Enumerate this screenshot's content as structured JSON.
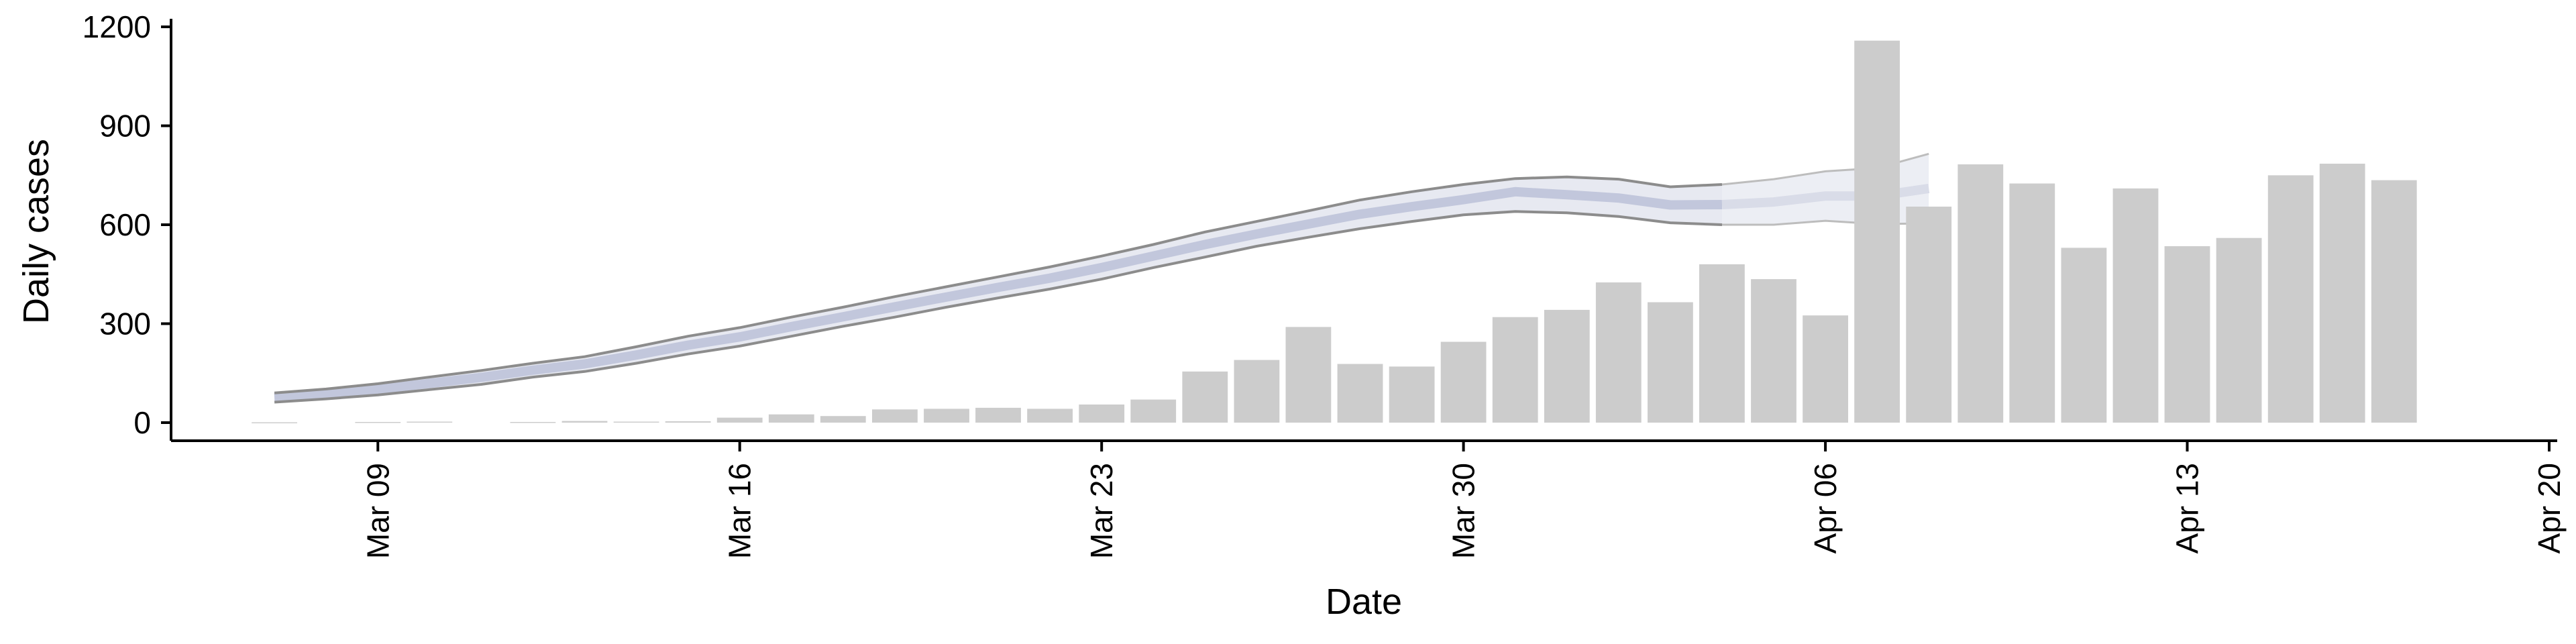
{
  "chart_data": {
    "type": "bar",
    "title": "",
    "xlabel": "Date",
    "ylabel": "Daily cases",
    "ylim": [
      0,
      1200
    ],
    "yticks": [
      0,
      300,
      600,
      900,
      1200
    ],
    "xlim": [
      "2020-03-05",
      "2020-04-20"
    ],
    "xticks": [
      {
        "date": "2020-03-09",
        "label": "Mar 09"
      },
      {
        "date": "2020-03-16",
        "label": "Mar 16"
      },
      {
        "date": "2020-03-23",
        "label": "Mar 23"
      },
      {
        "date": "2020-03-30",
        "label": "Mar 30"
      },
      {
        "date": "2020-04-06",
        "label": "Apr 06"
      },
      {
        "date": "2020-04-13",
        "label": "Apr 13"
      },
      {
        "date": "2020-04-20",
        "label": "Apr 20"
      }
    ],
    "grid": false,
    "colors": {
      "bars": "#cccccc",
      "band_outline": "#8c8c8c",
      "band_fill": "#d3d7e6",
      "band_projection": "#e6e8f0",
      "axis": "#000000"
    },
    "bars": [
      {
        "date": "2020-03-07",
        "value": 1
      },
      {
        "date": "2020-03-09",
        "value": 2
      },
      {
        "date": "2020-03-10",
        "value": 3
      },
      {
        "date": "2020-03-12",
        "value": 2
      },
      {
        "date": "2020-03-13",
        "value": 5
      },
      {
        "date": "2020-03-14",
        "value": 3
      },
      {
        "date": "2020-03-15",
        "value": 4
      },
      {
        "date": "2020-03-16",
        "value": 15
      },
      {
        "date": "2020-03-17",
        "value": 25
      },
      {
        "date": "2020-03-18",
        "value": 20
      },
      {
        "date": "2020-03-19",
        "value": 40
      },
      {
        "date": "2020-03-20",
        "value": 42
      },
      {
        "date": "2020-03-21",
        "value": 45
      },
      {
        "date": "2020-03-22",
        "value": 42
      },
      {
        "date": "2020-03-23",
        "value": 55
      },
      {
        "date": "2020-03-24",
        "value": 70
      },
      {
        "date": "2020-03-25",
        "value": 155
      },
      {
        "date": "2020-03-26",
        "value": 190
      },
      {
        "date": "2020-03-27",
        "value": 290
      },
      {
        "date": "2020-03-28",
        "value": 178
      },
      {
        "date": "2020-03-29",
        "value": 170
      },
      {
        "date": "2020-03-30",
        "value": 245
      },
      {
        "date": "2020-03-31",
        "value": 320
      },
      {
        "date": "2020-04-01",
        "value": 342
      },
      {
        "date": "2020-04-02",
        "value": 425
      },
      {
        "date": "2020-04-03",
        "value": 365
      },
      {
        "date": "2020-04-04",
        "value": 480
      },
      {
        "date": "2020-04-05",
        "value": 435
      },
      {
        "date": "2020-04-06",
        "value": 325
      },
      {
        "date": "2020-04-07",
        "value": 1158
      },
      {
        "date": "2020-04-08",
        "value": 655
      },
      {
        "date": "2020-04-09",
        "value": 783
      },
      {
        "date": "2020-04-10",
        "value": 725
      },
      {
        "date": "2020-04-11",
        "value": 530
      },
      {
        "date": "2020-04-12",
        "value": 710
      },
      {
        "date": "2020-04-13",
        "value": 535
      },
      {
        "date": "2020-04-14",
        "value": 560
      },
      {
        "date": "2020-04-15",
        "value": 750
      },
      {
        "date": "2020-04-16",
        "value": 785
      },
      {
        "date": "2020-04-17",
        "value": 735
      }
    ],
    "band": {
      "dates": [
        "2020-03-07",
        "2020-03-08",
        "2020-03-09",
        "2020-03-10",
        "2020-03-11",
        "2020-03-12",
        "2020-03-13",
        "2020-03-14",
        "2020-03-15",
        "2020-03-16",
        "2020-03-17",
        "2020-03-18",
        "2020-03-19",
        "2020-03-20",
        "2020-03-21",
        "2020-03-22",
        "2020-03-23",
        "2020-03-24",
        "2020-03-25",
        "2020-03-26",
        "2020-03-27",
        "2020-03-28",
        "2020-03-29",
        "2020-03-30",
        "2020-03-31",
        "2020-04-01",
        "2020-04-02",
        "2020-04-03",
        "2020-04-04",
        "2020-04-05",
        "2020-04-06",
        "2020-04-07",
        "2020-04-08"
      ],
      "upper": [
        90,
        102,
        118,
        138,
        158,
        180,
        200,
        230,
        262,
        288,
        320,
        350,
        382,
        412,
        442,
        472,
        505,
        540,
        578,
        610,
        642,
        675,
        700,
        722,
        740,
        745,
        738,
        715,
        722,
        738,
        762,
        772,
        815
      ],
      "lower": [
        62,
        72,
        84,
        100,
        116,
        138,
        155,
        180,
        208,
        232,
        262,
        292,
        320,
        350,
        378,
        405,
        435,
        470,
        502,
        535,
        562,
        588,
        610,
        630,
        640,
        636,
        625,
        606,
        600,
        600,
        612,
        602,
        604
      ],
      "center": [
        76,
        87,
        101,
        119,
        137,
        159,
        178,
        205,
        235,
        260,
        291,
        321,
        351,
        381,
        410,
        438,
        470,
        505,
        540,
        572,
        602,
        632,
        655,
        676,
        700,
        691,
        681,
        660,
        661,
        669,
        687,
        687,
        710
      ],
      "projection_from": "2020-04-04"
    }
  }
}
